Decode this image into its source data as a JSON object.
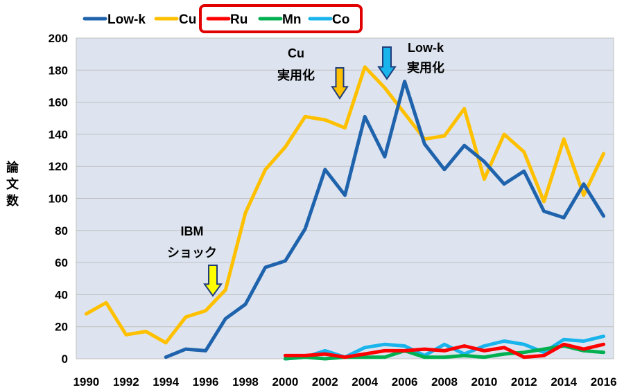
{
  "chart_data": {
    "type": "line",
    "ylabel": "論文数",
    "xlabel": "",
    "ylim": [
      0,
      200
    ],
    "xlim": [
      1990,
      2016
    ],
    "y_ticks": [
      0,
      20,
      40,
      60,
      80,
      100,
      120,
      140,
      160,
      180,
      200
    ],
    "x_ticks": [
      1990,
      1992,
      1994,
      1996,
      1998,
      2000,
      2002,
      2004,
      2006,
      2008,
      2010,
      2012,
      2014,
      2016
    ],
    "grid": "horizontal",
    "legend_placement": "top",
    "legend_highlight": [
      "Ru",
      "Mn",
      "Co"
    ],
    "series": [
      {
        "name": "Low-k",
        "color": "#1f63ad",
        "x": [
          1994,
          1995,
          1996,
          1997,
          1998,
          1999,
          2000,
          2001,
          2002,
          2003,
          2004,
          2005,
          2006,
          2007,
          2008,
          2009,
          2010,
          2011,
          2012,
          2013,
          2014,
          2015,
          2016
        ],
        "values": [
          1,
          6,
          5,
          25,
          34,
          57,
          61,
          81,
          118,
          102,
          151,
          126,
          173,
          134,
          118,
          133,
          123,
          109,
          117,
          92,
          88,
          109,
          89
        ]
      },
      {
        "name": "Cu",
        "color": "#ffc000",
        "x": [
          1990,
          1991,
          1992,
          1993,
          1994,
          1995,
          1996,
          1997,
          1998,
          1999,
          2000,
          2001,
          2002,
          2003,
          2004,
          2005,
          2006,
          2007,
          2008,
          2009,
          2010,
          2011,
          2012,
          2013,
          2014,
          2015,
          2016
        ],
        "values": [
          28,
          35,
          15,
          17,
          10,
          26,
          30,
          43,
          91,
          118,
          132,
          151,
          149,
          144,
          182,
          169,
          153,
          137,
          139,
          156,
          112,
          140,
          129,
          98,
          137,
          102,
          128
        ]
      },
      {
        "name": "Ru",
        "color": "#ff0000",
        "x": [
          2000,
          2001,
          2002,
          2003,
          2004,
          2005,
          2006,
          2007,
          2008,
          2009,
          2010,
          2011,
          2012,
          2013,
          2014,
          2015,
          2016
        ],
        "values": [
          2,
          2,
          3,
          1,
          3,
          5,
          5,
          6,
          5,
          8,
          5,
          7,
          1,
          2,
          9,
          6,
          9
        ]
      },
      {
        "name": "Mn",
        "color": "#00b050",
        "x": [
          2000,
          2001,
          2002,
          2003,
          2004,
          2005,
          2006,
          2007,
          2008,
          2009,
          2010,
          2011,
          2012,
          2013,
          2014,
          2015,
          2016
        ],
        "values": [
          0,
          1,
          0,
          1,
          1,
          1,
          5,
          1,
          1,
          2,
          1,
          3,
          4,
          6,
          8,
          5,
          4
        ]
      },
      {
        "name": "Co",
        "color": "#19b4ec",
        "x": [
          2000,
          2001,
          2002,
          2003,
          2004,
          2005,
          2006,
          2007,
          2008,
          2009,
          2010,
          2011,
          2012,
          2013,
          2014,
          2015,
          2016
        ],
        "values": [
          0,
          1,
          5,
          1,
          7,
          9,
          8,
          2,
          9,
          3,
          8,
          11,
          9,
          4,
          12,
          11,
          14
        ]
      }
    ],
    "annotations": [
      {
        "lines": [
          "IBM",
          "ショック"
        ],
        "x": 1996.5,
        "arrow_color": "#ffff00"
      },
      {
        "lines": [
          "Cu",
          "実用化"
        ],
        "x": 2003,
        "arrow_color": "#ffc000"
      },
      {
        "lines": [
          "Low-k",
          "実用化"
        ],
        "x": 2005,
        "arrow_color": "#19b4ec"
      }
    ],
    "plot_background": "#dde4ef"
  }
}
